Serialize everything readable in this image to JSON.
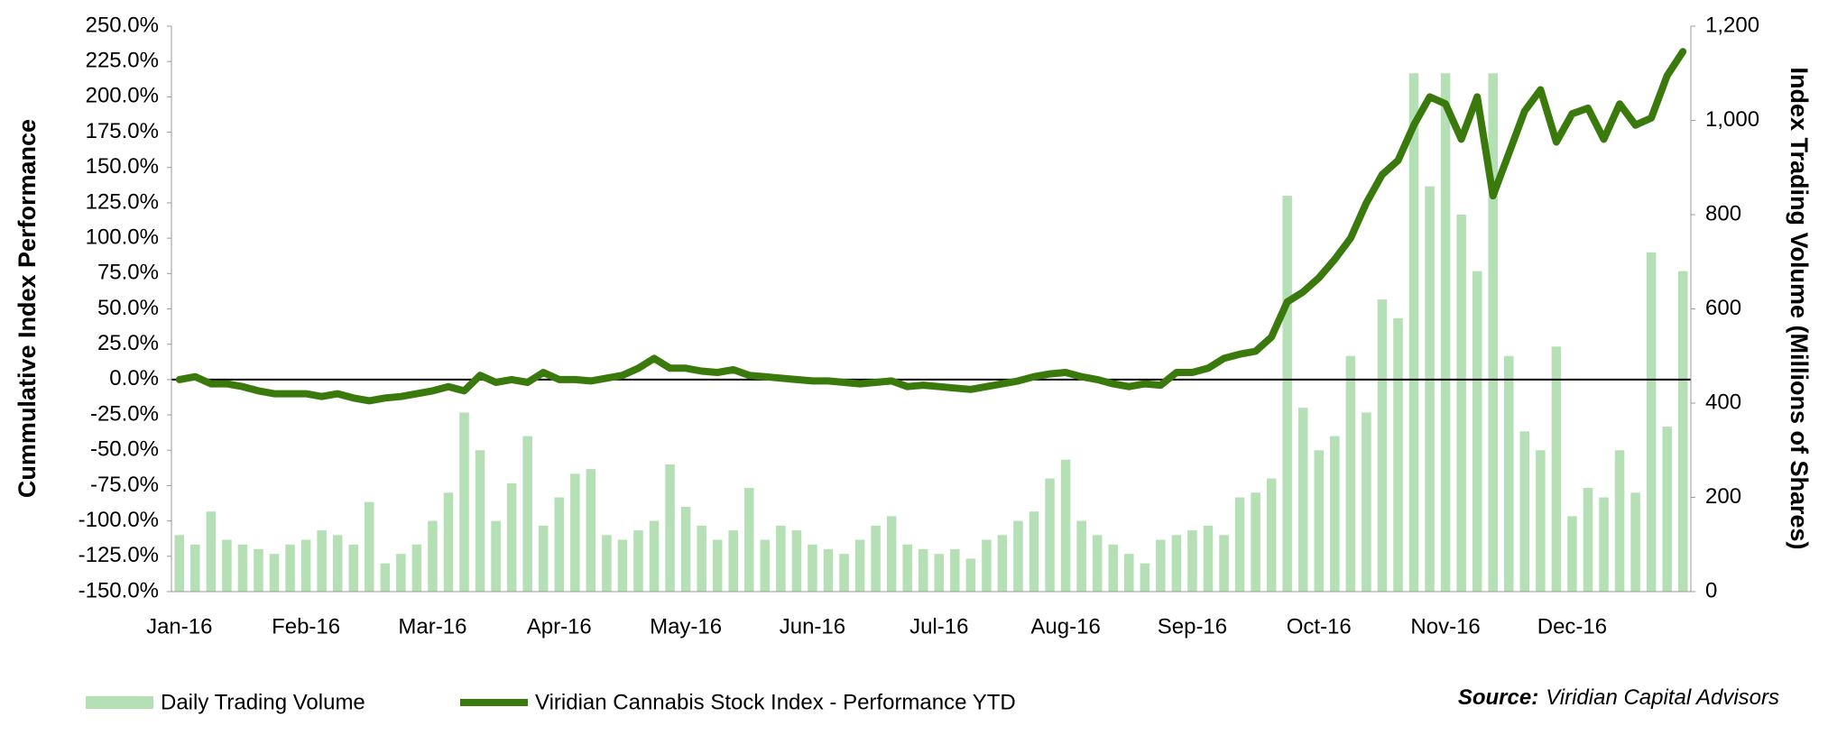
{
  "chart_data": {
    "type": "bar_line",
    "y_label": "Cummulative Index Performance",
    "y2_label": "Index Trading Volume (Millions of Shares)",
    "source_label": "Source:",
    "source": "Viridian Capital Advisors",
    "categories": [
      "Jan-16",
      null,
      null,
      null,
      null,
      null,
      null,
      null,
      "Feb-16",
      null,
      null,
      null,
      null,
      null,
      null,
      null,
      "Mar-16",
      null,
      null,
      null,
      null,
      null,
      null,
      null,
      "Apr-16",
      null,
      null,
      null,
      null,
      null,
      null,
      null,
      "May-16",
      null,
      null,
      null,
      null,
      null,
      null,
      null,
      "Jun-16",
      null,
      null,
      null,
      null,
      null,
      null,
      null,
      "Jul-16",
      null,
      null,
      null,
      null,
      null,
      null,
      null,
      "Aug-16",
      null,
      null,
      null,
      null,
      null,
      null,
      null,
      "Sep-16",
      null,
      null,
      null,
      null,
      null,
      null,
      null,
      "Oct-16",
      null,
      null,
      null,
      null,
      null,
      null,
      null,
      "Nov-16",
      null,
      null,
      null,
      null,
      null,
      null,
      null,
      "Dec-16",
      null,
      null,
      null,
      null,
      null,
      null,
      null
    ],
    "series": [
      {
        "name": "Daily Trading Volume",
        "color": "#b5e0b5",
        "axis": "y2",
        "values": [
          120,
          100,
          170,
          110,
          100,
          90,
          80,
          100,
          110,
          130,
          120,
          100,
          190,
          60,
          80,
          100,
          150,
          210,
          380,
          300,
          150,
          230,
          330,
          140,
          200,
          250,
          260,
          120,
          110,
          130,
          150,
          270,
          180,
          140,
          110,
          130,
          220,
          110,
          140,
          130,
          100,
          90,
          80,
          110,
          140,
          160,
          100,
          90,
          80,
          90,
          70,
          110,
          120,
          150,
          170,
          240,
          280,
          150,
          120,
          100,
          80,
          60,
          110,
          120,
          130,
          140,
          120,
          200,
          210,
          240,
          840,
          390,
          300,
          330,
          500,
          380,
          620,
          580,
          1100,
          860,
          1100,
          800,
          680,
          1100,
          500,
          340,
          300,
          520,
          160,
          220,
          200,
          300,
          210,
          720,
          350,
          680
        ]
      },
      {
        "name": "Viridian Cannabis Stock Index - Performance YTD",
        "color": "#3a7a0c",
        "axis": "y",
        "values": [
          0,
          2,
          -3,
          -3,
          -5,
          -8,
          -10,
          -10,
          -10,
          -12,
          -10,
          -13,
          -15,
          -13,
          -12,
          -10,
          -8,
          -5,
          -8,
          3,
          -2,
          0,
          -2,
          5,
          0,
          0,
          -1,
          1,
          3,
          8,
          15,
          8,
          8,
          6,
          5,
          7,
          3,
          2,
          1,
          0,
          -1,
          -1,
          -2,
          -3,
          -2,
          -1,
          -5,
          -4,
          -5,
          -6,
          -7,
          -5,
          -3,
          -1,
          2,
          4,
          5,
          2,
          0,
          -3,
          -5,
          -3,
          -4,
          5,
          5,
          8,
          15,
          18,
          20,
          30,
          55,
          62,
          72,
          85,
          100,
          125,
          145,
          155,
          180,
          200,
          195,
          170,
          200,
          130,
          160,
          190,
          205,
          168,
          188,
          192,
          170,
          195,
          180,
          185,
          215,
          232
        ]
      }
    ],
    "ylim": [
      -150,
      250
    ],
    "yticks": [
      {
        "value": -150,
        "label": "-150.0%"
      },
      {
        "value": -125,
        "label": "-125.0%"
      },
      {
        "value": -100,
        "label": "-100.0%"
      },
      {
        "value": -75,
        "label": "-75.0%"
      },
      {
        "value": -50,
        "label": "-50.0%"
      },
      {
        "value": -25,
        "label": "-25.0%"
      },
      {
        "value": 0,
        "label": "0.0%"
      },
      {
        "value": 25,
        "label": "25.0%"
      },
      {
        "value": 50,
        "label": "50.0%"
      },
      {
        "value": 75,
        "label": "75.0%"
      },
      {
        "value": 100,
        "label": "100.0%"
      },
      {
        "value": 125,
        "label": "125.0%"
      },
      {
        "value": 150,
        "label": "150.0%"
      },
      {
        "value": 175,
        "label": "175.0%"
      },
      {
        "value": 200,
        "label": "200.0%"
      },
      {
        "value": 225,
        "label": "225.0%"
      },
      {
        "value": 250,
        "label": "250.0%"
      }
    ],
    "y2lim": [
      0,
      1200
    ],
    "y2ticks": [
      0,
      200,
      400,
      600,
      800,
      {
        "value": 1000,
        "label": "1,000"
      },
      {
        "value": 1200,
        "label": "1,200"
      }
    ],
    "grid": false
  }
}
